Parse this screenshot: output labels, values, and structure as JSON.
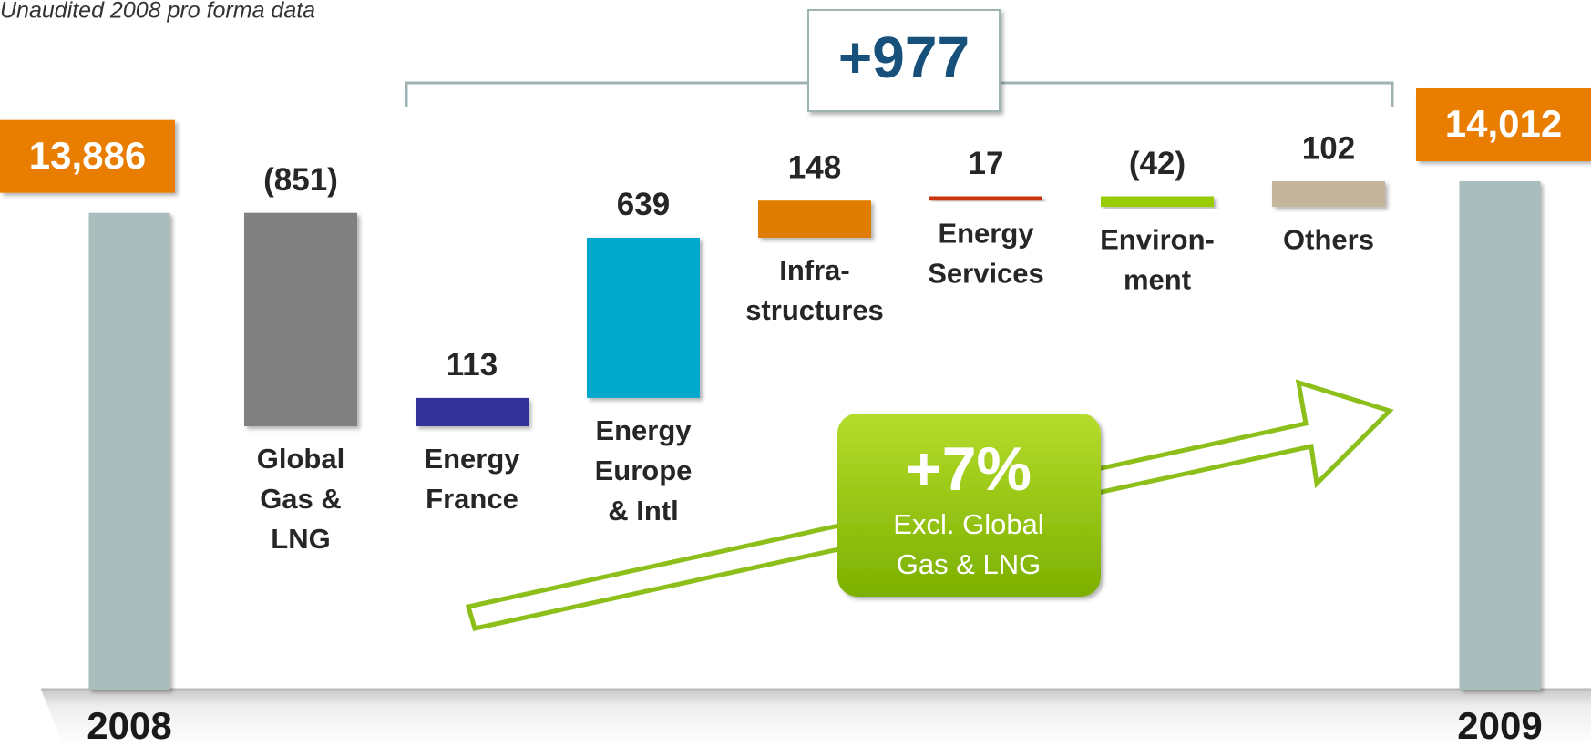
{
  "chart_data": {
    "type": "waterfall",
    "subtitle": "Unaudited 2008 pro forma data",
    "categories": [
      [
        "2008"
      ],
      [
        "Global",
        "Gas &",
        "LNG"
      ],
      [
        "Energy",
        "France"
      ],
      [
        "Energy",
        "Europe",
        "& Intl"
      ],
      [
        "Infra-",
        "structures"
      ],
      [
        "Energy",
        "Services"
      ],
      [
        "Environ-",
        "ment"
      ],
      [
        "Others"
      ],
      [
        "2009"
      ]
    ],
    "values": [
      13886,
      -851,
      113,
      639,
      148,
      17,
      -42,
      102,
      14012
    ],
    "value_labels": [
      "13,886",
      "(851)",
      "113",
      "639",
      "148",
      "17",
      "(42)",
      "102",
      "14,012"
    ],
    "colors": [
      "#aabdbd",
      "#808080",
      "#333399",
      "#00a8cc",
      "#e07b00",
      "#cc3311",
      "#99cc00",
      "#c4b69a",
      "#aabdbd"
    ],
    "annotations": {
      "bracket": "+977",
      "growth": "+7%",
      "growth_note": [
        "Excl. Global",
        "Gas & LNG"
      ]
    }
  }
}
